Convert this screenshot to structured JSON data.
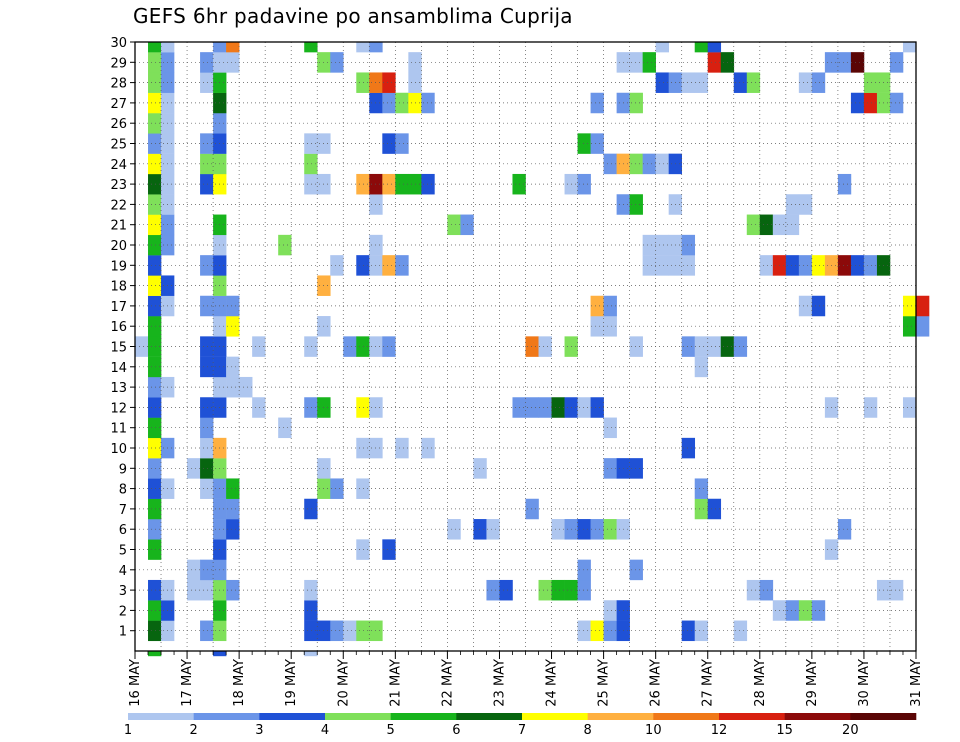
{
  "chart_data": {
    "type": "heatmap",
    "title": "GEFS 6hr padavine po ansamblima Cuprija",
    "x_tick_labels": [
      "16 MAY",
      "17 MAY",
      "18 MAY",
      "19 MAY",
      "20 MAY",
      "21 MAY",
      "22 MAY",
      "23 MAY",
      "24 MAY",
      "25 MAY",
      "26 MAY",
      "27 MAY",
      "28 MAY",
      "29 MAY",
      "30 MAY",
      "31 MAY"
    ],
    "y_tick_labels": [
      "1",
      "2",
      "3",
      "4",
      "5",
      "6",
      "7",
      "8",
      "9",
      "10",
      "11",
      "12",
      "13",
      "14",
      "15",
      "16",
      "17",
      "18",
      "19",
      "20",
      "21",
      "22",
      "23",
      "24",
      "25",
      "26",
      "27",
      "28",
      "29",
      "30"
    ],
    "x_range": [
      "16 MAY 00z",
      "31 MAY 00z"
    ],
    "time_step_hours": 6,
    "y_range": [
      0,
      30
    ],
    "grid": "dotted",
    "colorbar_thresholds": [
      "1",
      "2",
      "3",
      "4",
      "5",
      "6",
      "7",
      "8",
      "10",
      "12",
      "15",
      "20"
    ],
    "colorbar_colors": [
      "#aec6ef",
      "#6b95e8",
      "#1f51d6",
      "#7fe05a",
      "#17b41c",
      "#07650f",
      "#ffff00",
      "#ffb040",
      "#f07818",
      "#d82010",
      "#8c0a0a",
      "#5a0505"
    ],
    "note_levels": "cell value = colour class index 0..11 (0: 1-2, 1: 2-3, 2: 3-4, 3: 4-5, 4: 5-6, 5: 6-7, 6: 7-8, 7: 8-10, 8: 10-12, 9: 12-15, 10: 15-20, 11: >20)",
    "cells": [
      [
        1,
        1,
        5
      ],
      [
        1,
        2,
        0
      ],
      [
        1,
        5,
        1
      ],
      [
        1,
        6,
        3
      ],
      [
        1,
        13,
        2
      ],
      [
        1,
        14,
        2
      ],
      [
        1,
        15,
        1
      ],
      [
        1,
        16,
        0
      ],
      [
        1,
        17,
        3
      ],
      [
        1,
        18,
        3
      ],
      [
        1,
        34,
        0
      ],
      [
        1,
        35,
        6
      ],
      [
        1,
        36,
        1
      ],
      [
        1,
        37,
        2
      ],
      [
        1,
        42,
        2
      ],
      [
        1,
        43,
        0
      ],
      [
        1,
        46,
        0
      ],
      [
        2,
        1,
        4
      ],
      [
        2,
        2,
        2
      ],
      [
        2,
        6,
        4
      ],
      [
        2,
        13,
        2
      ],
      [
        2,
        36,
        0
      ],
      [
        2,
        37,
        2
      ],
      [
        2,
        49,
        0
      ],
      [
        2,
        50,
        1
      ],
      [
        2,
        51,
        3
      ],
      [
        2,
        52,
        1
      ],
      [
        3,
        1,
        2
      ],
      [
        3,
        2,
        0
      ],
      [
        3,
        4,
        0
      ],
      [
        3,
        5,
        0
      ],
      [
        3,
        6,
        3
      ],
      [
        3,
        7,
        1
      ],
      [
        3,
        13,
        0
      ],
      [
        3,
        27,
        1
      ],
      [
        3,
        28,
        2
      ],
      [
        3,
        31,
        3
      ],
      [
        3,
        32,
        4
      ],
      [
        3,
        33,
        4
      ],
      [
        3,
        34,
        1
      ],
      [
        3,
        47,
        0
      ],
      [
        3,
        48,
        1
      ],
      [
        3,
        57,
        0
      ],
      [
        3,
        58,
        0
      ],
      [
        4,
        4,
        0
      ],
      [
        4,
        5,
        1
      ],
      [
        4,
        6,
        1
      ],
      [
        4,
        34,
        1
      ],
      [
        4,
        38,
        1
      ],
      [
        5,
        1,
        4
      ],
      [
        5,
        6,
        2
      ],
      [
        5,
        17,
        0
      ],
      [
        5,
        19,
        2
      ],
      [
        5,
        53,
        0
      ],
      [
        6,
        1,
        1
      ],
      [
        6,
        6,
        1
      ],
      [
        6,
        7,
        2
      ],
      [
        6,
        24,
        0
      ],
      [
        6,
        26,
        2
      ],
      [
        6,
        27,
        0
      ],
      [
        6,
        32,
        0
      ],
      [
        6,
        33,
        1
      ],
      [
        6,
        34,
        2
      ],
      [
        6,
        35,
        1
      ],
      [
        6,
        36,
        3
      ],
      [
        6,
        37,
        0
      ],
      [
        6,
        54,
        1
      ],
      [
        7,
        1,
        4
      ],
      [
        7,
        6,
        1
      ],
      [
        7,
        7,
        1
      ],
      [
        7,
        13,
        2
      ],
      [
        7,
        30,
        1
      ],
      [
        7,
        43,
        3
      ],
      [
        7,
        44,
        2
      ],
      [
        8,
        1,
        2
      ],
      [
        8,
        2,
        0
      ],
      [
        8,
        5,
        0
      ],
      [
        8,
        6,
        1
      ],
      [
        8,
        7,
        4
      ],
      [
        8,
        14,
        3
      ],
      [
        8,
        15,
        1
      ],
      [
        8,
        17,
        0
      ],
      [
        8,
        43,
        1
      ],
      [
        9,
        1,
        1
      ],
      [
        9,
        4,
        0
      ],
      [
        9,
        5,
        5
      ],
      [
        9,
        6,
        3
      ],
      [
        9,
        14,
        0
      ],
      [
        9,
        26,
        0
      ],
      [
        9,
        36,
        1
      ],
      [
        9,
        37,
        2
      ],
      [
        9,
        38,
        2
      ],
      [
        10,
        1,
        6
      ],
      [
        10,
        2,
        1
      ],
      [
        10,
        5,
        0
      ],
      [
        10,
        6,
        7
      ],
      [
        10,
        17,
        0
      ],
      [
        10,
        18,
        0
      ],
      [
        10,
        20,
        0
      ],
      [
        10,
        22,
        0
      ],
      [
        10,
        42,
        2
      ],
      [
        11,
        1,
        4
      ],
      [
        11,
        5,
        1
      ],
      [
        11,
        11,
        0
      ],
      [
        11,
        36,
        0
      ],
      [
        12,
        1,
        2
      ],
      [
        12,
        5,
        2
      ],
      [
        12,
        6,
        2
      ],
      [
        12,
        9,
        0
      ],
      [
        12,
        13,
        1
      ],
      [
        12,
        14,
        4
      ],
      [
        12,
        17,
        6
      ],
      [
        12,
        18,
        0
      ],
      [
        12,
        29,
        1
      ],
      [
        12,
        30,
        1
      ],
      [
        12,
        31,
        1
      ],
      [
        12,
        32,
        5
      ],
      [
        12,
        33,
        2
      ],
      [
        12,
        34,
        0
      ],
      [
        12,
        35,
        2
      ],
      [
        12,
        53,
        0
      ],
      [
        12,
        56,
        0
      ],
      [
        12,
        59,
        0
      ],
      [
        13,
        1,
        1
      ],
      [
        13,
        2,
        0
      ],
      [
        13,
        6,
        0
      ],
      [
        13,
        7,
        0
      ],
      [
        13,
        8,
        0
      ],
      [
        14,
        1,
        4
      ],
      [
        14,
        5,
        2
      ],
      [
        14,
        6,
        2
      ],
      [
        14,
        7,
        0
      ],
      [
        14,
        43,
        0
      ],
      [
        15,
        0,
        0
      ],
      [
        15,
        1,
        4
      ],
      [
        15,
        5,
        2
      ],
      [
        15,
        6,
        2
      ],
      [
        15,
        9,
        0
      ],
      [
        15,
        13,
        0
      ],
      [
        15,
        16,
        1
      ],
      [
        15,
        17,
        4
      ],
      [
        15,
        18,
        0
      ],
      [
        15,
        19,
        1
      ],
      [
        15,
        30,
        8
      ],
      [
        15,
        31,
        0
      ],
      [
        15,
        33,
        3
      ],
      [
        15,
        38,
        0
      ],
      [
        15,
        42,
        1
      ],
      [
        15,
        43,
        0
      ],
      [
        15,
        44,
        0
      ],
      [
        15,
        45,
        5
      ],
      [
        15,
        46,
        1
      ],
      [
        16,
        1,
        4
      ],
      [
        16,
        6,
        0
      ],
      [
        16,
        7,
        6
      ],
      [
        16,
        14,
        0
      ],
      [
        16,
        35,
        0
      ],
      [
        16,
        36,
        0
      ],
      [
        16,
        59,
        4
      ],
      [
        16,
        60,
        1
      ],
      [
        17,
        1,
        2
      ],
      [
        17,
        2,
        0
      ],
      [
        17,
        5,
        1
      ],
      [
        17,
        6,
        1
      ],
      [
        17,
        7,
        1
      ],
      [
        17,
        35,
        7
      ],
      [
        17,
        36,
        1
      ],
      [
        17,
        51,
        0
      ],
      [
        17,
        52,
        2
      ],
      [
        17,
        59,
        6
      ],
      [
        17,
        60,
        9
      ],
      [
        18,
        1,
        6
      ],
      [
        18,
        2,
        2
      ],
      [
        18,
        6,
        3
      ],
      [
        18,
        14,
        7
      ],
      [
        19,
        1,
        2
      ],
      [
        19,
        5,
        1
      ],
      [
        19,
        6,
        2
      ],
      [
        19,
        15,
        0
      ],
      [
        19,
        17,
        2
      ],
      [
        19,
        18,
        0
      ],
      [
        19,
        19,
        7
      ],
      [
        19,
        20,
        1
      ],
      [
        19,
        39,
        0
      ],
      [
        19,
        40,
        0
      ],
      [
        19,
        41,
        0
      ],
      [
        19,
        42,
        0
      ],
      [
        19,
        48,
        0
      ],
      [
        19,
        49,
        9
      ],
      [
        19,
        50,
        2
      ],
      [
        19,
        51,
        1
      ],
      [
        19,
        52,
        6
      ],
      [
        19,
        53,
        7
      ],
      [
        19,
        54,
        10
      ],
      [
        19,
        55,
        2
      ],
      [
        19,
        56,
        1
      ],
      [
        19,
        57,
        5
      ],
      [
        20,
        1,
        4
      ],
      [
        20,
        2,
        1
      ],
      [
        20,
        6,
        0
      ],
      [
        20,
        11,
        3
      ],
      [
        20,
        18,
        0
      ],
      [
        20,
        39,
        0
      ],
      [
        20,
        40,
        0
      ],
      [
        20,
        41,
        0
      ],
      [
        20,
        42,
        1
      ],
      [
        21,
        1,
        6
      ],
      [
        21,
        2,
        1
      ],
      [
        21,
        6,
        4
      ],
      [
        21,
        24,
        3
      ],
      [
        21,
        25,
        1
      ],
      [
        21,
        47,
        3
      ],
      [
        21,
        48,
        5
      ],
      [
        21,
        49,
        0
      ],
      [
        21,
        50,
        0
      ],
      [
        22,
        1,
        3
      ],
      [
        22,
        2,
        0
      ],
      [
        22,
        18,
        0
      ],
      [
        22,
        37,
        1
      ],
      [
        22,
        38,
        4
      ],
      [
        22,
        41,
        0
      ],
      [
        22,
        50,
        0
      ],
      [
        22,
        51,
        0
      ],
      [
        23,
        1,
        5
      ],
      [
        23,
        2,
        0
      ],
      [
        23,
        5,
        2
      ],
      [
        23,
        6,
        6
      ],
      [
        23,
        13,
        0
      ],
      [
        23,
        14,
        0
      ],
      [
        23,
        17,
        7
      ],
      [
        23,
        18,
        10
      ],
      [
        23,
        19,
        7
      ],
      [
        23,
        20,
        4
      ],
      [
        23,
        21,
        4
      ],
      [
        23,
        22,
        2
      ],
      [
        23,
        29,
        4
      ],
      [
        23,
        33,
        0
      ],
      [
        23,
        34,
        1
      ],
      [
        23,
        54,
        1
      ],
      [
        24,
        1,
        6
      ],
      [
        24,
        2,
        0
      ],
      [
        24,
        5,
        3
      ],
      [
        24,
        6,
        3
      ],
      [
        24,
        13,
        3
      ],
      [
        24,
        36,
        1
      ],
      [
        24,
        37,
        7
      ],
      [
        24,
        38,
        3
      ],
      [
        24,
        39,
        1
      ],
      [
        24,
        40,
        0
      ],
      [
        24,
        41,
        2
      ],
      [
        25,
        1,
        1
      ],
      [
        25,
        2,
        0
      ],
      [
        25,
        5,
        1
      ],
      [
        25,
        6,
        2
      ],
      [
        25,
        13,
        0
      ],
      [
        25,
        14,
        0
      ],
      [
        25,
        19,
        2
      ],
      [
        25,
        20,
        1
      ],
      [
        25,
        34,
        4
      ],
      [
        25,
        35,
        1
      ],
      [
        26,
        1,
        3
      ],
      [
        26,
        2,
        0
      ],
      [
        26,
        6,
        1
      ],
      [
        27,
        1,
        6
      ],
      [
        27,
        2,
        0
      ],
      [
        27,
        6,
        5
      ],
      [
        27,
        18,
        2
      ],
      [
        27,
        19,
        1
      ],
      [
        27,
        20,
        3
      ],
      [
        27,
        21,
        6
      ],
      [
        27,
        22,
        1
      ],
      [
        27,
        35,
        1
      ],
      [
        27,
        37,
        1
      ],
      [
        27,
        38,
        3
      ],
      [
        27,
        55,
        2
      ],
      [
        27,
        56,
        9
      ],
      [
        27,
        57,
        3
      ],
      [
        27,
        58,
        1
      ],
      [
        28,
        1,
        3
      ],
      [
        28,
        2,
        1
      ],
      [
        28,
        5,
        0
      ],
      [
        28,
        6,
        4
      ],
      [
        28,
        17,
        3
      ],
      [
        28,
        18,
        8
      ],
      [
        28,
        19,
        9
      ],
      [
        28,
        21,
        0
      ],
      [
        28,
        40,
        2
      ],
      [
        28,
        41,
        1
      ],
      [
        28,
        42,
        0
      ],
      [
        28,
        43,
        0
      ],
      [
        28,
        46,
        2
      ],
      [
        28,
        47,
        3
      ],
      [
        28,
        51,
        0
      ],
      [
        28,
        52,
        1
      ],
      [
        28,
        56,
        3
      ],
      [
        28,
        57,
        3
      ],
      [
        29,
        1,
        3
      ],
      [
        29,
        2,
        1
      ],
      [
        29,
        5,
        1
      ],
      [
        29,
        6,
        0
      ],
      [
        29,
        7,
        0
      ],
      [
        29,
        14,
        3
      ],
      [
        29,
        15,
        1
      ],
      [
        29,
        21,
        0
      ],
      [
        29,
        37,
        0
      ],
      [
        29,
        38,
        0
      ],
      [
        29,
        39,
        4
      ],
      [
        29,
        44,
        9
      ],
      [
        29,
        45,
        5
      ],
      [
        29,
        53,
        1
      ],
      [
        29,
        54,
        1
      ],
      [
        29,
        55,
        11
      ],
      [
        29,
        58,
        1
      ],
      [
        30,
        1,
        4
      ],
      [
        30,
        2,
        0
      ],
      [
        30,
        6,
        1
      ],
      [
        30,
        7,
        8
      ],
      [
        30,
        13,
        4
      ],
      [
        30,
        17,
        0
      ],
      [
        30,
        18,
        1
      ],
      [
        30,
        40,
        0
      ],
      [
        30,
        43,
        4
      ],
      [
        30,
        44,
        2
      ],
      [
        30,
        59,
        0
      ],
      [
        0,
        1,
        4
      ],
      [
        0,
        6,
        2
      ],
      [
        0,
        13,
        0
      ]
    ]
  }
}
